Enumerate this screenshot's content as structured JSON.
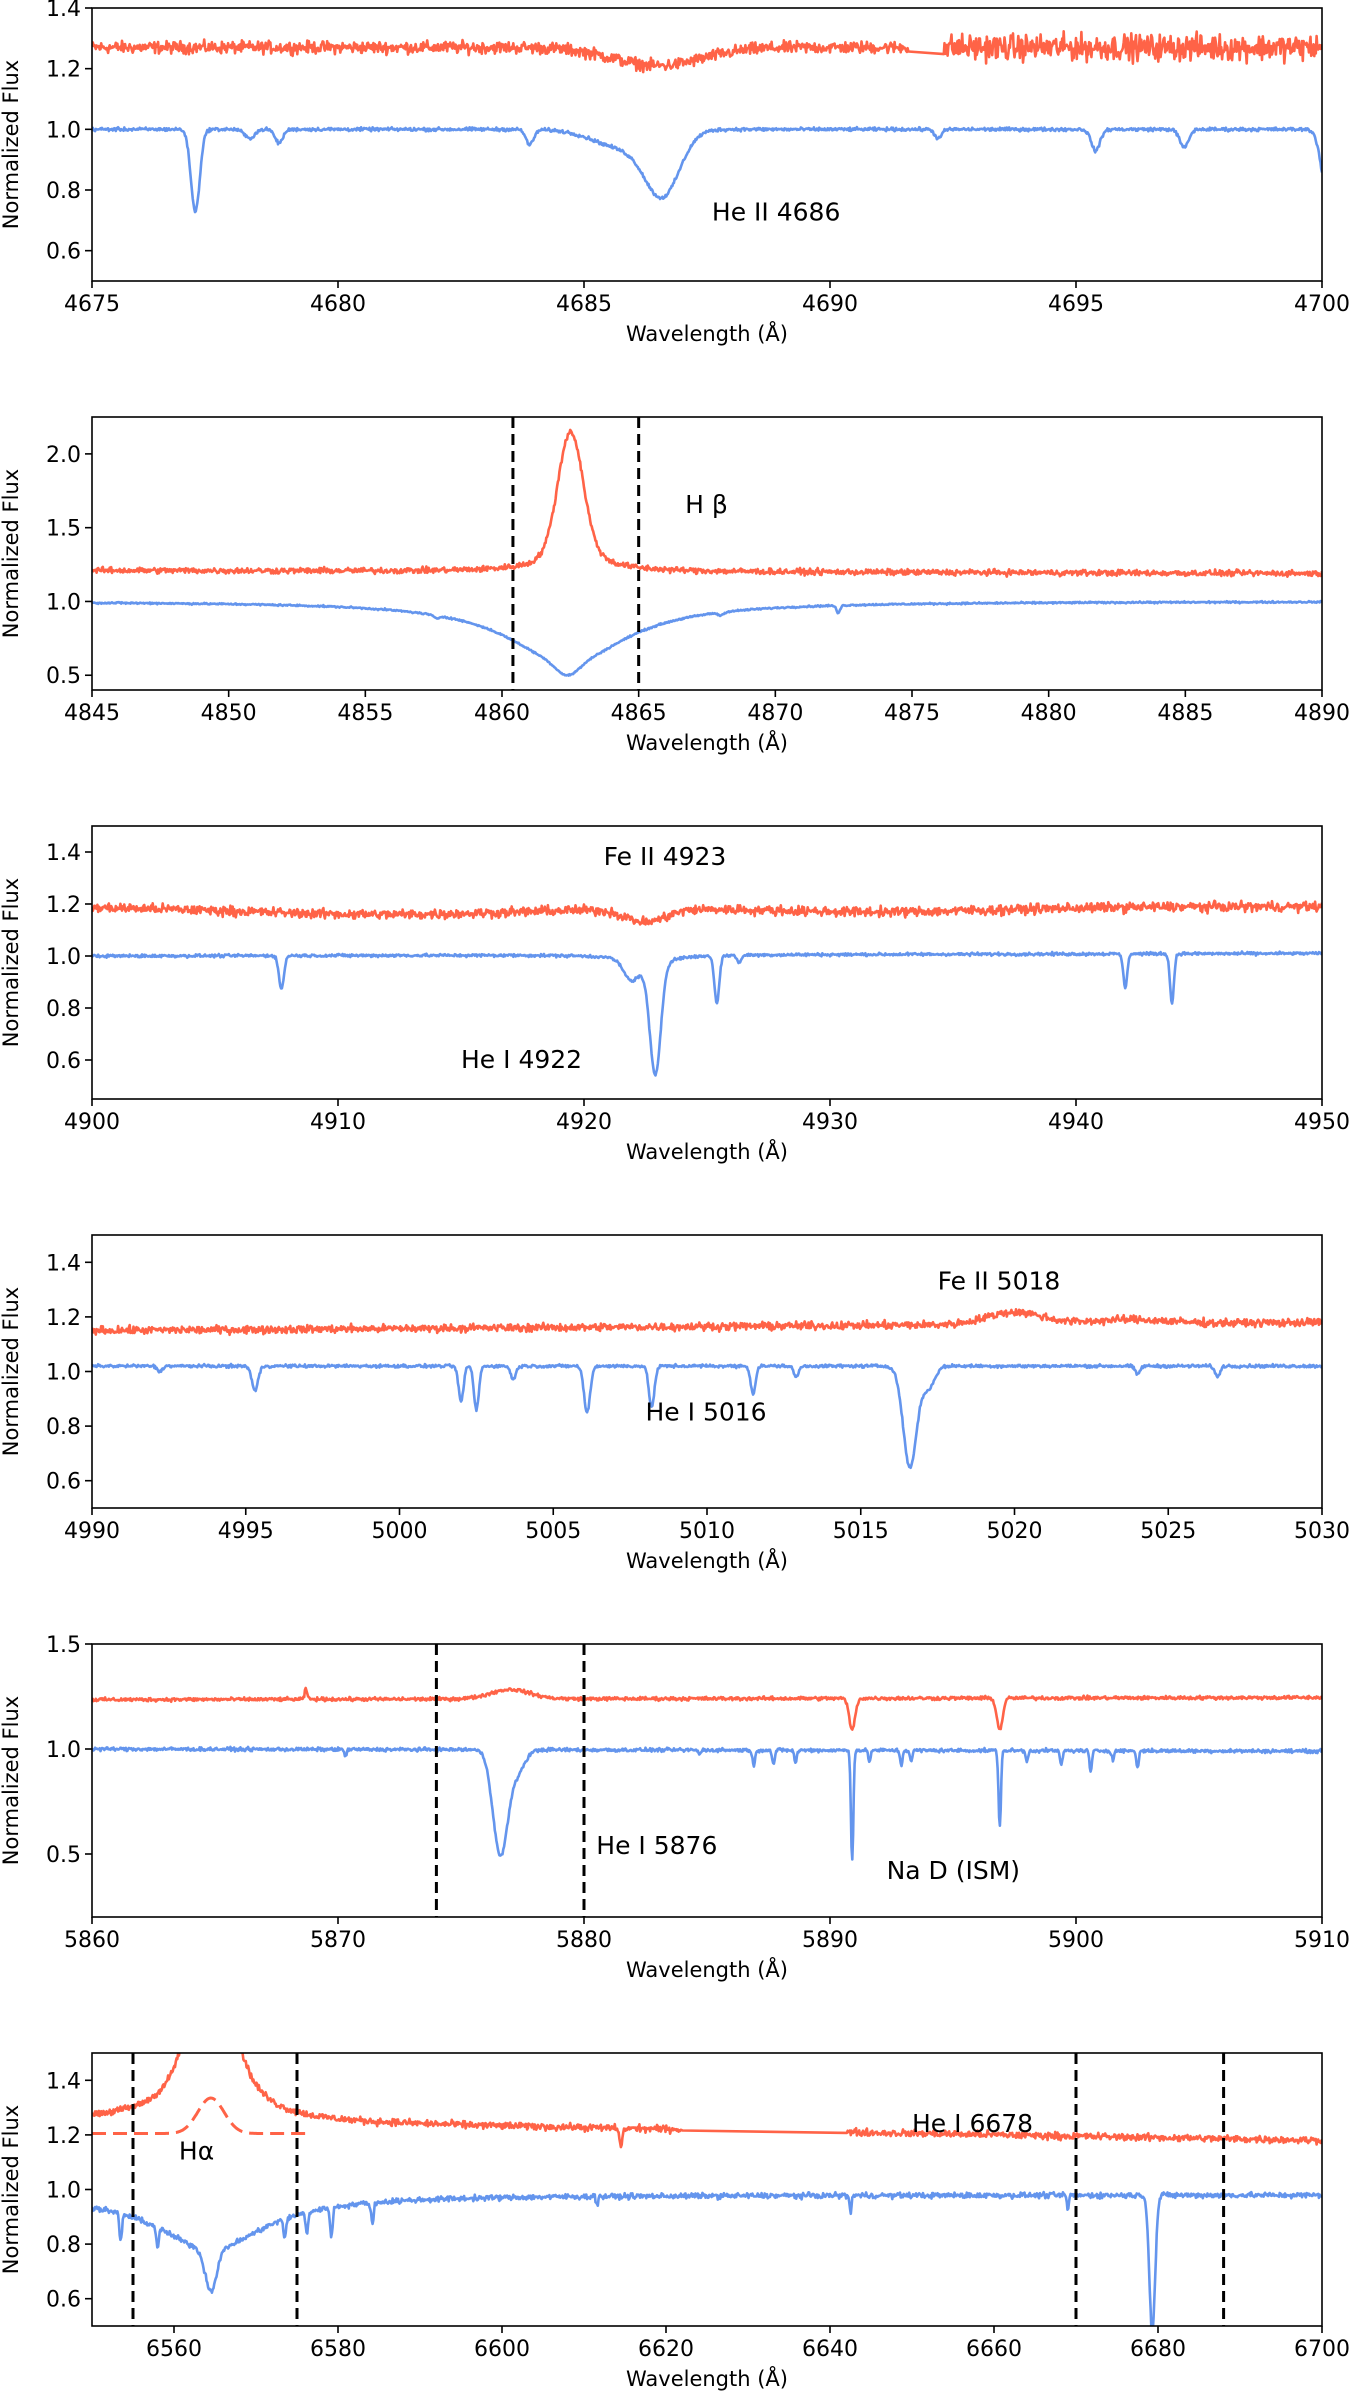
{
  "chart_data": [
    {
      "type": "line",
      "xlabel": "Wavelength (Å)",
      "ylabel": "Normalized Flux",
      "xlim": [
        4675,
        4700
      ],
      "ylim": [
        0.5,
        1.4
      ],
      "xticks": [
        4675,
        4680,
        4685,
        4690,
        4695,
        4700
      ],
      "yticks": [
        0.6,
        0.8,
        1.0,
        1.2,
        1.4
      ],
      "series": [
        {
          "color": "#ff6347",
          "continuum": [
            1.27,
            1.27
          ],
          "noise": 0.014,
          "noise_after": [
            4692.3,
            0.03
          ],
          "lines": [
            [
              4686.5,
              -0.06,
              0.9,
              0
            ]
          ],
          "gaps": [
            [
              4691.6,
              4692.3
            ]
          ]
        },
        {
          "color": "#6495ed",
          "continuum": [
            1.0,
            1.0
          ],
          "noise": 0.004,
          "lines": [
            [
              4677.1,
              -0.27,
              0.09,
              0
            ],
            [
              4678.2,
              -0.03,
              0.1,
              0
            ],
            [
              4678.8,
              -0.045,
              0.08,
              0
            ],
            [
              4683.9,
              -0.05,
              0.08,
              0
            ],
            [
              4686.6,
              -0.2,
              0.35,
              0
            ],
            [
              4685.8,
              -0.06,
              0.6,
              0
            ],
            [
              4692.2,
              -0.03,
              0.07,
              0
            ],
            [
              4695.4,
              -0.07,
              0.09,
              0
            ],
            [
              4697.2,
              -0.06,
              0.09,
              0
            ],
            [
              4700.1,
              -0.2,
              0.12,
              0
            ]
          ],
          "gaps": []
        }
      ],
      "vlines": [],
      "annotations": [
        {
          "text": "He II 4686",
          "x": 4687.6,
          "y": 0.7
        }
      ]
    },
    {
      "type": "line",
      "xlabel": "Wavelength (Å)",
      "ylabel": "Normalized Flux",
      "xlim": [
        4845,
        4890
      ],
      "ylim": [
        0.4,
        2.25
      ],
      "xticks": [
        4845,
        4850,
        4855,
        4860,
        4865,
        4870,
        4875,
        4880,
        4885,
        4890
      ],
      "yticks": [
        0.5,
        1.0,
        1.5,
        2.0
      ],
      "series": [
        {
          "color": "#ff6347",
          "continuum": [
            1.21,
            1.19
          ],
          "noise": 0.014,
          "lines": [
            [
              4862.5,
              0.75,
              0.45,
              0
            ],
            [
              4862.6,
              0.2,
              1.0,
              1
            ]
          ],
          "gaps": []
        },
        {
          "color": "#6495ed",
          "continuum": [
            1.0,
            1.0
          ],
          "noise": 0.004,
          "lines": [
            [
              4862.4,
              -0.42,
              2.6,
              1
            ],
            [
              4862.4,
              -0.08,
              0.4,
              0
            ],
            [
              4857.6,
              -0.02,
              0.1,
              0
            ],
            [
              4868,
              -0.02,
              0.1,
              0
            ],
            [
              4872.3,
              -0.05,
              0.07,
              0
            ]
          ],
          "gaps": []
        }
      ],
      "vlines": [
        4860.4,
        4865
      ],
      "annotations": [
        {
          "text": "H β",
          "x": 4866.7,
          "y": 1.6
        }
      ]
    },
    {
      "type": "line",
      "xlabel": "Wavelength (Å)",
      "ylabel": "Normalized Flux",
      "xlim": [
        4900,
        4950
      ],
      "ylim": [
        0.45,
        1.5
      ],
      "xticks": [
        4900,
        4910,
        4920,
        4930,
        4940,
        4950
      ],
      "yticks": [
        0.6,
        0.8,
        1.0,
        1.2,
        1.4
      ],
      "series": [
        {
          "color": "#ff6347",
          "continuum": [
            1.19,
            1.19
          ],
          "noise": 0.013,
          "lines": [
            [
              4912,
              -0.03,
              6,
              0
            ],
            [
              4922.5,
              -0.05,
              0.8,
              0
            ],
            [
              4932,
              -0.02,
              5,
              0
            ]
          ],
          "gaps": []
        },
        {
          "color": "#6495ed",
          "continuum": [
            1.0,
            1.01
          ],
          "noise": 0.004,
          "lines": [
            [
              4907.7,
              -0.13,
              0.1,
              0
            ],
            [
              4921.9,
              -0.07,
              0.3,
              0
            ],
            [
              4922.9,
              -0.42,
              0.22,
              0
            ],
            [
              4922.6,
              -0.05,
              0.8,
              1
            ],
            [
              4925.4,
              -0.18,
              0.1,
              0
            ],
            [
              4926.3,
              -0.03,
              0.08,
              0
            ],
            [
              4942.0,
              -0.13,
              0.08,
              0
            ],
            [
              4943.9,
              -0.19,
              0.08,
              0
            ]
          ],
          "gaps": []
        }
      ],
      "vlines": [],
      "annotations": [
        {
          "text": "Fe II 4923",
          "x": 4920.8,
          "y": 1.35
        },
        {
          "text": "He I 4922",
          "x": 4915,
          "y": 0.57
        }
      ]
    },
    {
      "type": "line",
      "xlabel": "Wavelength (Å)",
      "ylabel": "Normalized Flux",
      "xlim": [
        4990,
        5030
      ],
      "ylim": [
        0.5,
        1.5
      ],
      "xticks": [
        4990,
        4995,
        5000,
        5005,
        5010,
        5015,
        5020,
        5025,
        5030
      ],
      "yticks": [
        0.6,
        0.8,
        1.0,
        1.2,
        1.4
      ],
      "series": [
        {
          "color": "#ff6347",
          "continuum": [
            1.15,
            1.18
          ],
          "noise": 0.01,
          "lines": [
            [
              5020,
              0.045,
              0.9,
              0
            ],
            [
              5023.7,
              0.015,
              1.2,
              0
            ]
          ],
          "gaps": []
        },
        {
          "color": "#6495ed",
          "continuum": [
            1.02,
            1.02
          ],
          "noise": 0.004,
          "lines": [
            [
              4995.3,
              -0.09,
              0.1,
              0
            ],
            [
              4992.2,
              -0.02,
              0.08,
              0
            ],
            [
              5002.0,
              -0.13,
              0.08,
              0
            ],
            [
              5002.5,
              -0.16,
              0.08,
              0
            ],
            [
              5003.7,
              -0.05,
              0.08,
              0
            ],
            [
              5006.1,
              -0.17,
              0.1,
              0
            ],
            [
              5008.2,
              -0.15,
              0.09,
              0
            ],
            [
              5011.5,
              -0.1,
              0.08,
              0
            ],
            [
              5012.9,
              -0.04,
              0.08,
              0
            ],
            [
              5016.6,
              -0.37,
              0.22,
              0
            ],
            [
              5017.2,
              -0.08,
              0.2,
              0
            ],
            [
              5024,
              -0.03,
              0.08,
              0
            ],
            [
              5026.6,
              -0.04,
              0.08,
              0
            ]
          ],
          "gaps": []
        }
      ],
      "vlines": [],
      "annotations": [
        {
          "text": "Fe II 5018",
          "x": 5017.5,
          "y": 1.3
        },
        {
          "text": "He I 5016",
          "x": 5008,
          "y": 0.82
        }
      ]
    },
    {
      "type": "line",
      "xlabel": "Wavelength (Å)",
      "ylabel": "Normalized Flux",
      "xlim": [
        5860,
        5910
      ],
      "ylim": [
        0.2,
        1.5
      ],
      "xticks": [
        5860,
        5870,
        5880,
        5890,
        5900,
        5910
      ],
      "yticks": [
        0.5,
        1.0,
        1.5
      ],
      "series": [
        {
          "color": "#ff6347",
          "continuum": [
            1.235,
            1.245
          ],
          "noise": 0.006,
          "lines": [
            [
              5868.7,
              0.05,
              0.05,
              0
            ],
            [
              5877,
              0.045,
              0.8,
              0
            ],
            [
              5890.9,
              -0.15,
              0.12,
              0
            ],
            [
              5896.9,
              -0.15,
              0.12,
              0
            ]
          ],
          "gaps": []
        },
        {
          "color": "#6495ed",
          "continuum": [
            1.0,
            0.99
          ],
          "noise": 0.006,
          "lines": [
            [
              5876.6,
              -0.5,
              0.3,
              0
            ],
            [
              5877.3,
              -0.1,
              0.3,
              0
            ],
            [
              5890.9,
              -0.52,
              0.05,
              0
            ],
            [
              5896.9,
              -0.36,
              0.05,
              0
            ],
            [
              5886.9,
              -0.08,
              0.05,
              0
            ],
            [
              5887.7,
              -0.07,
              0.05,
              0
            ],
            [
              5888.6,
              -0.06,
              0.05,
              0
            ],
            [
              5891.6,
              -0.05,
              0.05,
              0
            ],
            [
              5892.9,
              -0.07,
              0.05,
              0
            ],
            [
              5893.3,
              -0.05,
              0.05,
              0
            ],
            [
              5898.0,
              -0.05,
              0.05,
              0
            ],
            [
              5899.4,
              -0.07,
              0.05,
              0
            ],
            [
              5900.6,
              -0.1,
              0.05,
              0
            ],
            [
              5901.5,
              -0.04,
              0.05,
              0
            ],
            [
              5902.5,
              -0.08,
              0.05,
              0
            ],
            [
              5870.3,
              -0.03,
              0.05,
              0
            ],
            [
              5884.7,
              -0.02,
              0.05,
              0
            ]
          ],
          "gaps": []
        }
      ],
      "vlines": [
        5874,
        5880
      ],
      "annotations": [
        {
          "text": "He I 5876",
          "x": 5880.5,
          "y": 0.5
        },
        {
          "text": "Na D (ISM)",
          "x": 5892.3,
          "y": 0.38
        }
      ]
    },
    {
      "type": "line",
      "xlabel": "Wavelength (Å)",
      "ylabel": "Normalized Flux",
      "xlim": [
        6550,
        6700
      ],
      "ylim": [
        0.5,
        1.5
      ],
      "xticks": [
        6560,
        6580,
        6600,
        6620,
        6640,
        6660,
        6680,
        6700
      ],
      "yticks": [
        0.6,
        0.8,
        1.0,
        1.2,
        1.4
      ],
      "series": [
        {
          "color": "#ff6347",
          "continuum": [
            1.255,
            1.18
          ],
          "noise": 0.009,
          "lines": [
            [
              6564.5,
              1.2,
              2.0,
              1
            ],
            [
              6614.5,
              -0.06,
              0.2,
              0
            ]
          ],
          "gaps": [
            [
              6622,
              6642
            ]
          ]
        },
        {
          "color": "#6495ed",
          "continuum": [
            0.98,
            0.98
          ],
          "noise": 0.007,
          "lines": [
            [
              6564.5,
              -0.2,
              8,
              1
            ],
            [
              6564.5,
              -0.15,
              0.7,
              0
            ],
            [
              6553.5,
              -0.1,
              0.15,
              0
            ],
            [
              6558,
              -0.07,
              0.15,
              0
            ],
            [
              6573.5,
              -0.07,
              0.15,
              0
            ],
            [
              6576.2,
              -0.08,
              0.15,
              0
            ],
            [
              6579.2,
              -0.11,
              0.15,
              0
            ],
            [
              6584.2,
              -0.08,
              0.15,
              0
            ],
            [
              6611.6,
              -0.03,
              0.12,
              0
            ],
            [
              6642.5,
              -0.06,
              0.12,
              0
            ],
            [
              6669,
              -0.05,
              0.12,
              0
            ],
            [
              6679.3,
              -0.5,
              0.35,
              0
            ]
          ],
          "gaps": []
        },
        {
          "color": "#ff6347",
          "dashed": true,
          "range": [
            6550,
            6576
          ],
          "continuum": [
            1.205,
            1.205
          ],
          "noise": 0,
          "lines": [
            [
              6564.5,
              0.13,
              1.6,
              0
            ]
          ],
          "gaps": []
        }
      ],
      "vlines": [
        6555,
        6575,
        6670,
        6688
      ],
      "annotations": [
        {
          "text": "Hα",
          "x": 6560.6,
          "y": 1.11
        },
        {
          "text": "He I 6678",
          "x": 6650,
          "y": 1.21
        }
      ]
    }
  ]
}
